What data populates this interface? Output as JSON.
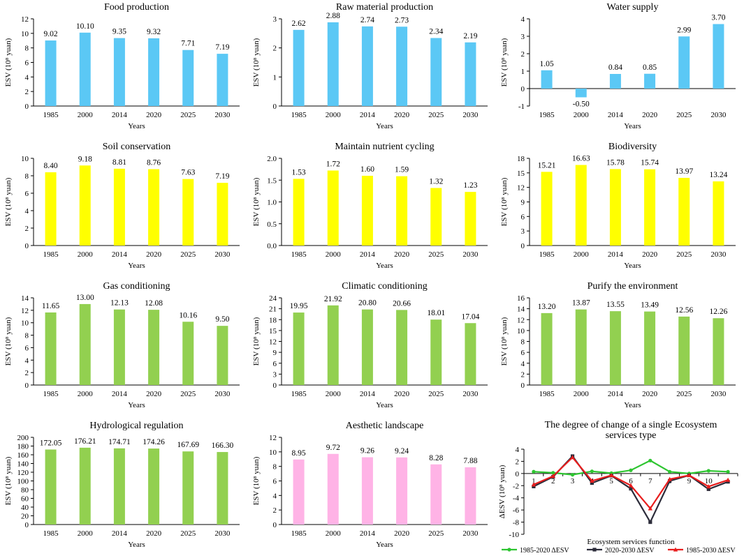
{
  "chart_data": [
    {
      "type": "bar",
      "title": "Food production",
      "categories": [
        "1985",
        "2000",
        "2014",
        "2020",
        "2025",
        "2030"
      ],
      "values": [
        9.02,
        10.1,
        9.35,
        9.32,
        7.71,
        7.19
      ],
      "value_labels": [
        "9.02",
        "10.10",
        "9.35",
        "9.32",
        "7.71",
        "7.19"
      ],
      "ylim": [
        0,
        12
      ],
      "yticks": [
        0,
        2,
        4,
        6,
        8,
        10,
        12
      ],
      "ytick_labels": [
        "0",
        "2",
        "4",
        "6",
        "8",
        "10",
        "12"
      ],
      "xlabel": "Years",
      "ylabel": "ESV (10⁸ yuan)",
      "color": "#5BC8F5"
    },
    {
      "type": "bar",
      "title": "Raw material production",
      "categories": [
        "1985",
        "2000",
        "2014",
        "2020",
        "2025",
        "2030"
      ],
      "values": [
        2.62,
        2.88,
        2.74,
        2.73,
        2.34,
        2.19
      ],
      "value_labels": [
        "2.62",
        "2.88",
        "2.74",
        "2.73",
        "2.34",
        "2.19"
      ],
      "ylim": [
        0,
        3
      ],
      "yticks": [
        0,
        1,
        2,
        3
      ],
      "ytick_labels": [
        "0",
        "1",
        "2",
        "3"
      ],
      "xlabel": "Years",
      "ylabel": "ESV (10⁸ yuan)",
      "color": "#5BC8F5"
    },
    {
      "type": "bar",
      "title": "Water supply",
      "categories": [
        "1985",
        "2000",
        "2014",
        "2020",
        "2025",
        "2030"
      ],
      "values": [
        1.05,
        -0.5,
        0.84,
        0.85,
        2.99,
        3.7
      ],
      "value_labels": [
        "1.05",
        "-0.50",
        "0.84",
        "0.85",
        "2.99",
        "3.70"
      ],
      "ylim": [
        -1,
        4
      ],
      "yticks": [
        -1,
        0,
        1,
        2,
        3,
        4
      ],
      "ytick_labels": [
        "-1",
        "0",
        "1",
        "2",
        "3",
        "4"
      ],
      "xlabel": "Years",
      "ylabel": "ESV (10⁸ yuan)",
      "color": "#5BC8F5"
    },
    {
      "type": "bar",
      "title": "Soil conservation",
      "categories": [
        "1985",
        "2000",
        "2014",
        "2020",
        "2025",
        "2030"
      ],
      "values": [
        8.4,
        9.18,
        8.81,
        8.76,
        7.63,
        7.19
      ],
      "value_labels": [
        "8.40",
        "9.18",
        "8.81",
        "8.76",
        "7.63",
        "7.19"
      ],
      "ylim": [
        0,
        10
      ],
      "yticks": [
        0,
        2,
        4,
        6,
        8,
        10
      ],
      "ytick_labels": [
        "0",
        "2",
        "4",
        "6",
        "8",
        "10"
      ],
      "xlabel": "Years",
      "ylabel": "ESV (10⁸ yuan)",
      "color": "#FFFF00"
    },
    {
      "type": "bar",
      "title": "Maintain nutrient cycling",
      "categories": [
        "1985",
        "2000",
        "2014",
        "2020",
        "2025",
        "2030"
      ],
      "values": [
        1.53,
        1.72,
        1.6,
        1.59,
        1.32,
        1.23
      ],
      "value_labels": [
        "1.53",
        "1.72",
        "1.60",
        "1.59",
        "1.32",
        "1.23"
      ],
      "ylim": [
        0,
        2
      ],
      "yticks": [
        0,
        0.5,
        1,
        1.5,
        2
      ],
      "ytick_labels": [
        "0.0",
        "0.5",
        "1.0",
        "1.5",
        "2.0"
      ],
      "xlabel": "Years",
      "ylabel": "ESV (10⁸ yuan)",
      "color": "#FFFF00"
    },
    {
      "type": "bar",
      "title": "Biodiversity",
      "categories": [
        "1985",
        "2000",
        "2014",
        "2020",
        "2025",
        "2030"
      ],
      "values": [
        15.21,
        16.63,
        15.78,
        15.74,
        13.97,
        13.24
      ],
      "value_labels": [
        "15.21",
        "16.63",
        "15.78",
        "15.74",
        "13.97",
        "13.24"
      ],
      "ylim": [
        0,
        18
      ],
      "yticks": [
        0,
        3,
        6,
        9,
        12,
        15,
        18
      ],
      "ytick_labels": [
        "0",
        "3",
        "6",
        "9",
        "12",
        "15",
        "18"
      ],
      "xlabel": "Years",
      "ylabel": "ESV (10⁸ yuan)",
      "color": "#FFFF00"
    },
    {
      "type": "bar",
      "title": "Gas conditioning",
      "categories": [
        "1985",
        "2000",
        "2014",
        "2020",
        "2025",
        "2030"
      ],
      "values": [
        11.65,
        13.0,
        12.13,
        12.08,
        10.16,
        9.5
      ],
      "value_labels": [
        "11.65",
        "13.00",
        "12.13",
        "12.08",
        "10.16",
        "9.50"
      ],
      "ylim": [
        0,
        14
      ],
      "yticks": [
        0,
        2,
        4,
        6,
        8,
        10,
        12,
        14
      ],
      "ytick_labels": [
        "0",
        "2",
        "4",
        "6",
        "8",
        "10",
        "12",
        "14"
      ],
      "xlabel": "Years",
      "ylabel": "ESV (10⁸ yuan)",
      "color": "#92D050"
    },
    {
      "type": "bar",
      "title": "Climatic conditioning",
      "categories": [
        "1985",
        "2000",
        "2014",
        "2020",
        "2025",
        "2030"
      ],
      "values": [
        19.95,
        21.92,
        20.8,
        20.66,
        18.01,
        17.04
      ],
      "value_labels": [
        "19.95",
        "21.92",
        "20.80",
        "20.66",
        "18.01",
        "17.04"
      ],
      "ylim": [
        0,
        24
      ],
      "yticks": [
        0,
        3,
        6,
        9,
        12,
        15,
        18,
        21,
        24
      ],
      "ytick_labels": [
        "0",
        "3",
        "6",
        "9",
        "12",
        "15",
        "18",
        "21",
        "24"
      ],
      "xlabel": "Years",
      "ylabel": "ESV (10⁸ yuan)",
      "color": "#92D050"
    },
    {
      "type": "bar",
      "title": "Purify the environment",
      "categories": [
        "1985",
        "2000",
        "2014",
        "2020",
        "2025",
        "2030"
      ],
      "values": [
        13.2,
        13.87,
        13.55,
        13.49,
        12.56,
        12.26
      ],
      "value_labels": [
        "13.20",
        "13.87",
        "13.55",
        "13.49",
        "12.56",
        "12.26"
      ],
      "ylim": [
        0,
        16
      ],
      "yticks": [
        0,
        2,
        4,
        6,
        8,
        10,
        12,
        14,
        16
      ],
      "ytick_labels": [
        "0",
        "2",
        "4",
        "6",
        "8",
        "10",
        "12",
        "14",
        "16"
      ],
      "xlabel": "Years",
      "ylabel": "ESV (10⁸ yuan)",
      "color": "#92D050"
    },
    {
      "type": "bar",
      "title": "Hydrological regulation",
      "categories": [
        "1985",
        "2000",
        "2014",
        "2020",
        "2025",
        "2030"
      ],
      "values": [
        172.05,
        176.21,
        174.71,
        174.26,
        167.69,
        166.3
      ],
      "value_labels": [
        "172.05",
        "176.21",
        "174.71",
        "174.26",
        "167.69",
        "166.30"
      ],
      "ylim": [
        0,
        200
      ],
      "yticks": [
        0,
        20,
        40,
        60,
        80,
        100,
        120,
        140,
        160,
        180,
        200
      ],
      "ytick_labels": [
        "0",
        "20",
        "40",
        "60",
        "80",
        "100",
        "120",
        "140",
        "160",
        "180",
        "200"
      ],
      "xlabel": "Years",
      "ylabel": "ESV (10⁸ yuan)",
      "color": "#92D050"
    },
    {
      "type": "bar",
      "title": "Aesthetic landscape",
      "categories": [
        "1985",
        "2000",
        "2014",
        "2020",
        "2025",
        "2030"
      ],
      "values": [
        8.95,
        9.72,
        9.26,
        9.24,
        8.28,
        7.88
      ],
      "value_labels": [
        "8.95",
        "9.72",
        "9.26",
        "9.24",
        "8.28",
        "7.88"
      ],
      "ylim": [
        0,
        12
      ],
      "yticks": [
        0,
        2,
        4,
        6,
        8,
        10,
        12
      ],
      "ytick_labels": [
        "0",
        "2",
        "4",
        "6",
        "8",
        "10",
        "12"
      ],
      "xlabel": "Years",
      "ylabel": "ESV (10⁸ yuan)",
      "color": "#FFB3E6"
    },
    {
      "type": "line",
      "title": "The degree of change of a single Ecosystem services type",
      "x": [
        1,
        2,
        3,
        4,
        5,
        6,
        7,
        8,
        9,
        10,
        11
      ],
      "xtick_labels": [
        "1",
        "2",
        "3",
        "4",
        "5",
        "6",
        "7",
        "8",
        "9",
        "10",
        ""
      ],
      "ylim": [
        -10,
        4
      ],
      "yticks": [
        -10,
        -8,
        -6,
        -4,
        -2,
        0,
        2,
        4
      ],
      "ytick_labels": [
        "-10",
        "-8",
        "-6",
        "-4",
        "-2",
        "0",
        "2",
        "4"
      ],
      "xlabel": "Ecosystem services function",
      "ylabel": "ΔESV (10⁸ yuan)",
      "legend_position": "bottom",
      "series": [
        {
          "name": "1985-2020 ΔESV",
          "color": "#2EC531",
          "marker": "circle",
          "values": [
            0.3,
            0.11,
            -0.2,
            0.36,
            0.06,
            0.53,
            2.13,
            0.29,
            0.0,
            0.44,
            0.29
          ]
        },
        {
          "name": "2020-2030 ΔESV",
          "color": "#2C2C3A",
          "marker": "square",
          "values": [
            -2.13,
            -0.54,
            2.85,
            -1.57,
            -0.36,
            -2.5,
            -8.0,
            -1.23,
            -0.3,
            -2.58,
            -1.36
          ]
        },
        {
          "name": "1985-2030 ΔESV",
          "color": "#E81D1D",
          "marker": "triangle",
          "values": [
            -1.83,
            -0.43,
            2.65,
            -1.21,
            -0.3,
            -1.97,
            -5.75,
            -0.94,
            -0.3,
            -2.14,
            -1.07
          ]
        }
      ]
    }
  ]
}
